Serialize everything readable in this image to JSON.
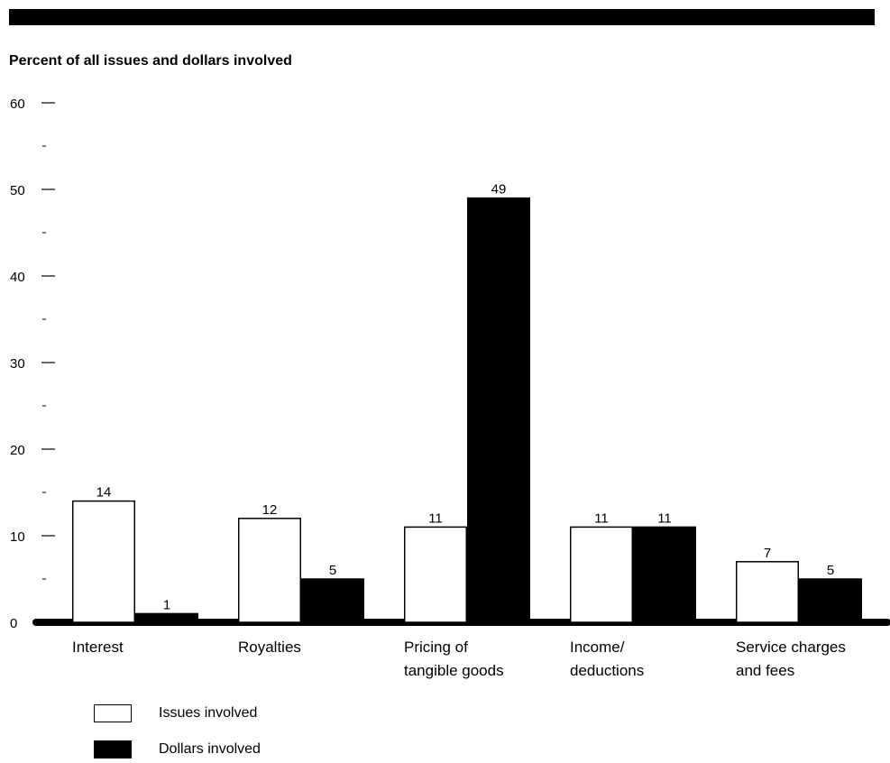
{
  "chart_data": {
    "type": "bar",
    "title": "Percent of all issues and dollars involved",
    "categories": [
      [
        "Interest"
      ],
      [
        "Royalties"
      ],
      [
        "Pricing of",
        "tangible goods"
      ],
      [
        "Income/",
        "deductions"
      ],
      [
        "Service charges",
        "and fees"
      ]
    ],
    "series": [
      {
        "name": "Issues involved",
        "values": [
          14,
          12,
          11,
          11,
          7
        ],
        "color": "#ffffff"
      },
      {
        "name": "Dollars involved",
        "values": [
          1,
          5,
          49,
          11,
          5
        ],
        "color": "#000000"
      }
    ],
    "ylim": [
      0,
      60
    ],
    "yticks_major": [
      "0",
      "10",
      "20",
      "30",
      "40",
      "50",
      "60"
    ],
    "grid": false,
    "legend_position": "bottom-left"
  }
}
